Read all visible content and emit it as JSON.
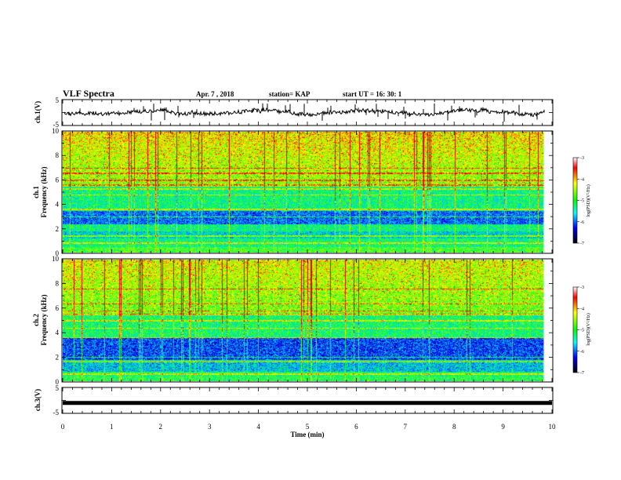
{
  "header": {
    "title": "VLF Spectra",
    "date": "Apr. 7 , 2018",
    "station": "station= KAP",
    "start": "start UT = 16: 30: 1"
  },
  "chart_data": [
    {
      "type": "line",
      "name": "waveform-ch1",
      "ylabel": "ch.1(V)",
      "ylim": [
        -5,
        5
      ],
      "yticks": [
        "5",
        "-5"
      ],
      "xlim": [
        0,
        10
      ],
      "note": "dense noisy waveform centered near 0 V, amplitude roughly ±3 V"
    },
    {
      "type": "heatmap",
      "name": "spectrogram-ch1",
      "ylabel": "ch.1",
      "ylabel2": "Frequency (kHz)",
      "ylim": [
        0,
        10
      ],
      "yticks": [
        "0",
        "2",
        "4",
        "6",
        "8",
        "10"
      ],
      "xlim": [
        0,
        10
      ],
      "colorbar": {
        "label": "log(PSD)(V²/Hz)",
        "ticks": [
          "-3",
          "-4",
          "-5",
          "-6",
          "-7"
        ],
        "range": [
          -7,
          -3
        ]
      }
    },
    {
      "type": "heatmap",
      "name": "spectrogram-ch2",
      "ylabel": "ch.2",
      "ylabel2": "Frequency (kHz)",
      "ylim": [
        0,
        10
      ],
      "yticks": [
        "0",
        "2",
        "4",
        "6",
        "8",
        "10"
      ],
      "xlim": [
        0,
        10
      ],
      "colorbar": {
        "label": "log(PSD)(V²/Hz)",
        "ticks": [
          "-3",
          "-4",
          "-5",
          "-6",
          "-7"
        ],
        "range": [
          -7,
          -3
        ]
      }
    },
    {
      "type": "line",
      "name": "waveform-ch3",
      "ylabel": "ch.3(V)",
      "ylim": [
        -5,
        5
      ],
      "yticks": [
        "5",
        "-5"
      ],
      "xlim": [
        0,
        10
      ],
      "xlabel": "Time (min)",
      "xticks": [
        "0",
        "1",
        "2",
        "3",
        "4",
        "5",
        "6",
        "7",
        "8",
        "9",
        "10"
      ],
      "note": "flat line at about -1 V"
    }
  ]
}
